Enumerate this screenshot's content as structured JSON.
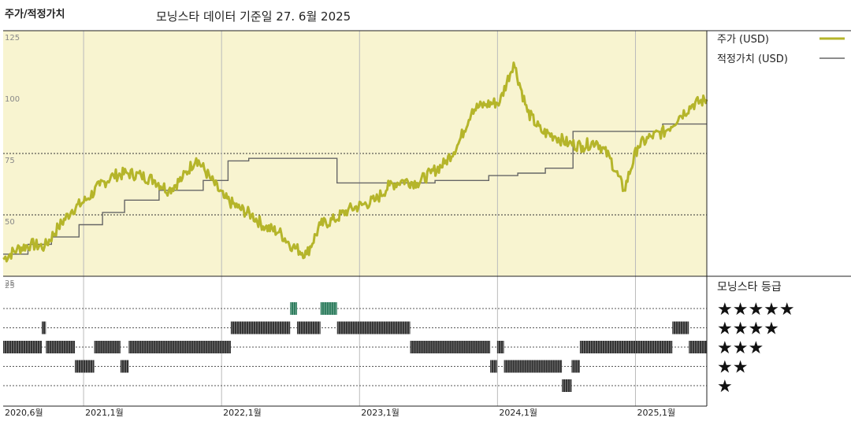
{
  "header": {
    "left_title": "주가/적정가치",
    "subtitle": "모닝스타 데이터 기준일 27. 6월 2025"
  },
  "legend": {
    "price_label": "주가 (USD)",
    "fair_value_label": "적정가치 (USD)",
    "price_color": "#b5b52a",
    "fair_value_color": "#666666"
  },
  "rating_panel": {
    "title": "모닝스타 등급",
    "stars": [
      "★★★★★",
      "★★★★",
      "★★★",
      "★★",
      "★"
    ],
    "rating_color_default": "#333333",
    "rating_color_5": "#2e7d5e"
  },
  "chart_data": {
    "type": "line",
    "x_unit": "years since 2020-06",
    "xlim": [
      0,
      5.1
    ],
    "ylim": [
      25,
      125
    ],
    "y_ticks": [
      25,
      50,
      75,
      100,
      125
    ],
    "x_ticks": [
      {
        "x": 0.0,
        "label": "2020,6월"
      },
      {
        "x": 0.583,
        "label": "2021,1월"
      },
      {
        "x": 1.583,
        "label": "2022,1월"
      },
      {
        "x": 2.583,
        "label": "2023,1월"
      },
      {
        "x": 3.583,
        "label": "2024,1월"
      },
      {
        "x": 4.583,
        "label": "2025,1월"
      }
    ],
    "plot_background": "#f8f4d0",
    "dashed_grid": [
      75,
      50
    ],
    "series": [
      {
        "name": "주가 (USD)",
        "x": [
          0.0,
          0.1,
          0.2,
          0.3,
          0.4,
          0.5,
          0.6,
          0.7,
          0.8,
          0.9,
          1.0,
          1.1,
          1.2,
          1.3,
          1.4,
          1.5,
          1.6,
          1.7,
          1.8,
          1.9,
          2.0,
          2.1,
          2.2,
          2.3,
          2.4,
          2.5,
          2.6,
          2.7,
          2.8,
          2.9,
          3.0,
          3.1,
          3.2,
          3.3,
          3.4,
          3.5,
          3.6,
          3.7,
          3.8,
          3.9,
          4.0,
          4.1,
          4.2,
          4.3,
          4.4,
          4.5,
          4.6,
          4.7,
          4.8,
          4.9,
          5.0,
          5.1
        ],
        "y": [
          32,
          36,
          38,
          37,
          45,
          52,
          56,
          62,
          66,
          67,
          66,
          64,
          60,
          65,
          73,
          65,
          57,
          53,
          50,
          45,
          43,
          37,
          34,
          46,
          48,
          52,
          54,
          56,
          62,
          64,
          63,
          67,
          71,
          79,
          93,
          95,
          96,
          112,
          92,
          84,
          82,
          79,
          78,
          80,
          73,
          60,
          78,
          82,
          84,
          90,
          95,
          97
        ]
      },
      {
        "name": "적정가치 (USD)",
        "step": true,
        "x": [
          0.0,
          0.18,
          0.35,
          0.55,
          0.72,
          0.88,
          1.13,
          1.45,
          1.63,
          1.78,
          2.0,
          2.23,
          2.42,
          2.66,
          2.88,
          3.13,
          3.34,
          3.52,
          3.73,
          3.93,
          4.13,
          4.32,
          4.52,
          4.78,
          5.1
        ],
        "y": [
          34,
          38,
          41,
          46,
          51,
          56,
          60,
          64,
          72,
          73,
          73,
          73,
          63,
          63,
          63,
          64,
          64,
          66,
          67,
          69,
          84,
          84,
          84,
          87,
          87
        ]
      }
    ],
    "ratings": [
      {
        "stars": 3,
        "x0": 0.0,
        "x1": 0.28
      },
      {
        "stars": 4,
        "x0": 0.28,
        "x1": 0.31
      },
      {
        "stars": 3,
        "x0": 0.31,
        "x1": 0.52
      },
      {
        "stars": 2,
        "x0": 0.52,
        "x1": 0.66
      },
      {
        "stars": 3,
        "x0": 0.66,
        "x1": 0.85
      },
      {
        "stars": 2,
        "x0": 0.85,
        "x1": 0.91
      },
      {
        "stars": 3,
        "x0": 0.91,
        "x1": 1.65
      },
      {
        "stars": 4,
        "x0": 1.65,
        "x1": 2.08
      },
      {
        "stars": 5,
        "x0": 2.08,
        "x1": 2.13
      },
      {
        "stars": 4,
        "x0": 2.13,
        "x1": 2.3
      },
      {
        "stars": 5,
        "x0": 2.3,
        "x1": 2.42
      },
      {
        "stars": 4,
        "x0": 2.42,
        "x1": 2.95
      },
      {
        "stars": 3,
        "x0": 2.95,
        "x1": 3.53
      },
      {
        "stars": 2,
        "x0": 3.53,
        "x1": 3.58
      },
      {
        "stars": 3,
        "x0": 3.58,
        "x1": 3.63
      },
      {
        "stars": 2,
        "x0": 3.63,
        "x1": 4.05
      },
      {
        "stars": 1,
        "x0": 4.05,
        "x1": 4.12
      },
      {
        "stars": 2,
        "x0": 4.12,
        "x1": 4.18
      },
      {
        "stars": 3,
        "x0": 4.18,
        "x1": 4.85
      },
      {
        "stars": 4,
        "x0": 4.85,
        "x1": 4.97
      },
      {
        "stars": 3,
        "x0": 4.97,
        "x1": 5.1
      }
    ]
  }
}
